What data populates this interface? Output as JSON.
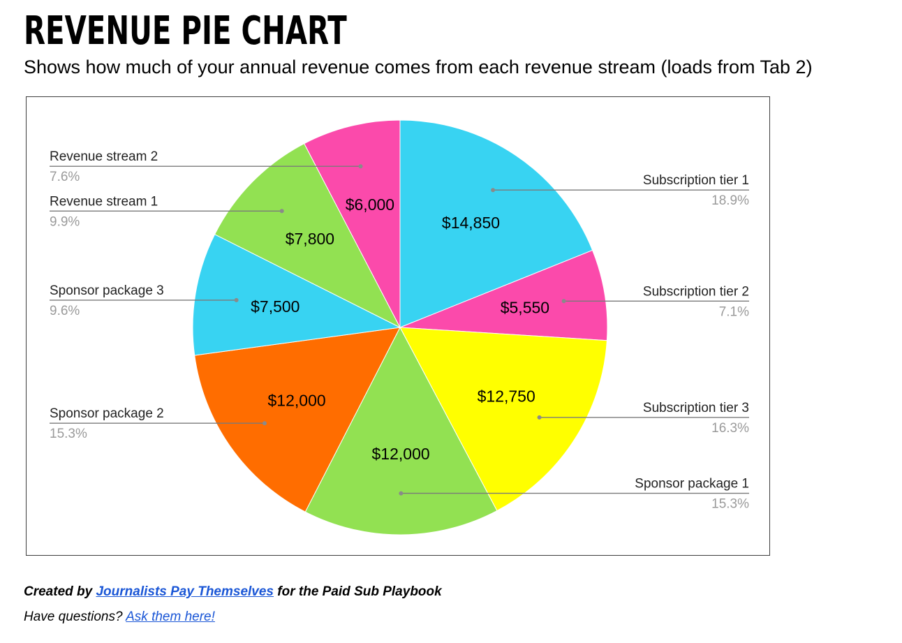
{
  "header": {
    "title": "REVENUE PIE CHART",
    "subtitle": "Shows how much of your annual revenue comes from each revenue stream (loads from Tab 2)"
  },
  "footer": {
    "credit_prefix": "Created by",
    "credit_link": "Journalists Pay Themselves",
    "credit_suffix": "for the Paid Sub Playbook",
    "question_prefix": "Have questions?",
    "question_link": "Ask them here!"
  },
  "colors": {
    "cyan": "#38d3f2",
    "magenta": "#fb4aab",
    "yellow": "#ffff00",
    "green": "#92e152",
    "orange": "#ff6d00"
  },
  "chart_data": {
    "type": "pie",
    "title": "",
    "start_angle_deg": 0,
    "direction": "clockwise",
    "slices": [
      {
        "label": "Subscription tier 1",
        "value": 14850,
        "value_label": "$14,850",
        "percent_label": "18.9%",
        "color": "#38d3f2"
      },
      {
        "label": "Subscription tier 2",
        "value": 5550,
        "value_label": "$5,550",
        "percent_label": "7.1%",
        "color": "#fb4aab"
      },
      {
        "label": "Subscription tier 3",
        "value": 12750,
        "value_label": "$12,750",
        "percent_label": "16.3%",
        "color": "#ffff00"
      },
      {
        "label": "Sponsor package 1",
        "value": 12000,
        "value_label": "$12,000",
        "percent_label": "15.3%",
        "color": "#92e152"
      },
      {
        "label": "Sponsor package 2",
        "value": 12000,
        "value_label": "$12,000",
        "percent_label": "15.3%",
        "color": "#ff6d00"
      },
      {
        "label": "Sponsor package 3",
        "value": 7500,
        "value_label": "$7,500",
        "percent_label": "9.6%",
        "color": "#38d3f2"
      },
      {
        "label": "Revenue stream 1",
        "value": 7800,
        "value_label": "$7,800",
        "percent_label": "9.9%",
        "color": "#92e152"
      },
      {
        "label": "Revenue stream 2",
        "value": 6000,
        "value_label": "$6,000",
        "percent_label": "7.6%",
        "color": "#fb4aab"
      }
    ]
  }
}
